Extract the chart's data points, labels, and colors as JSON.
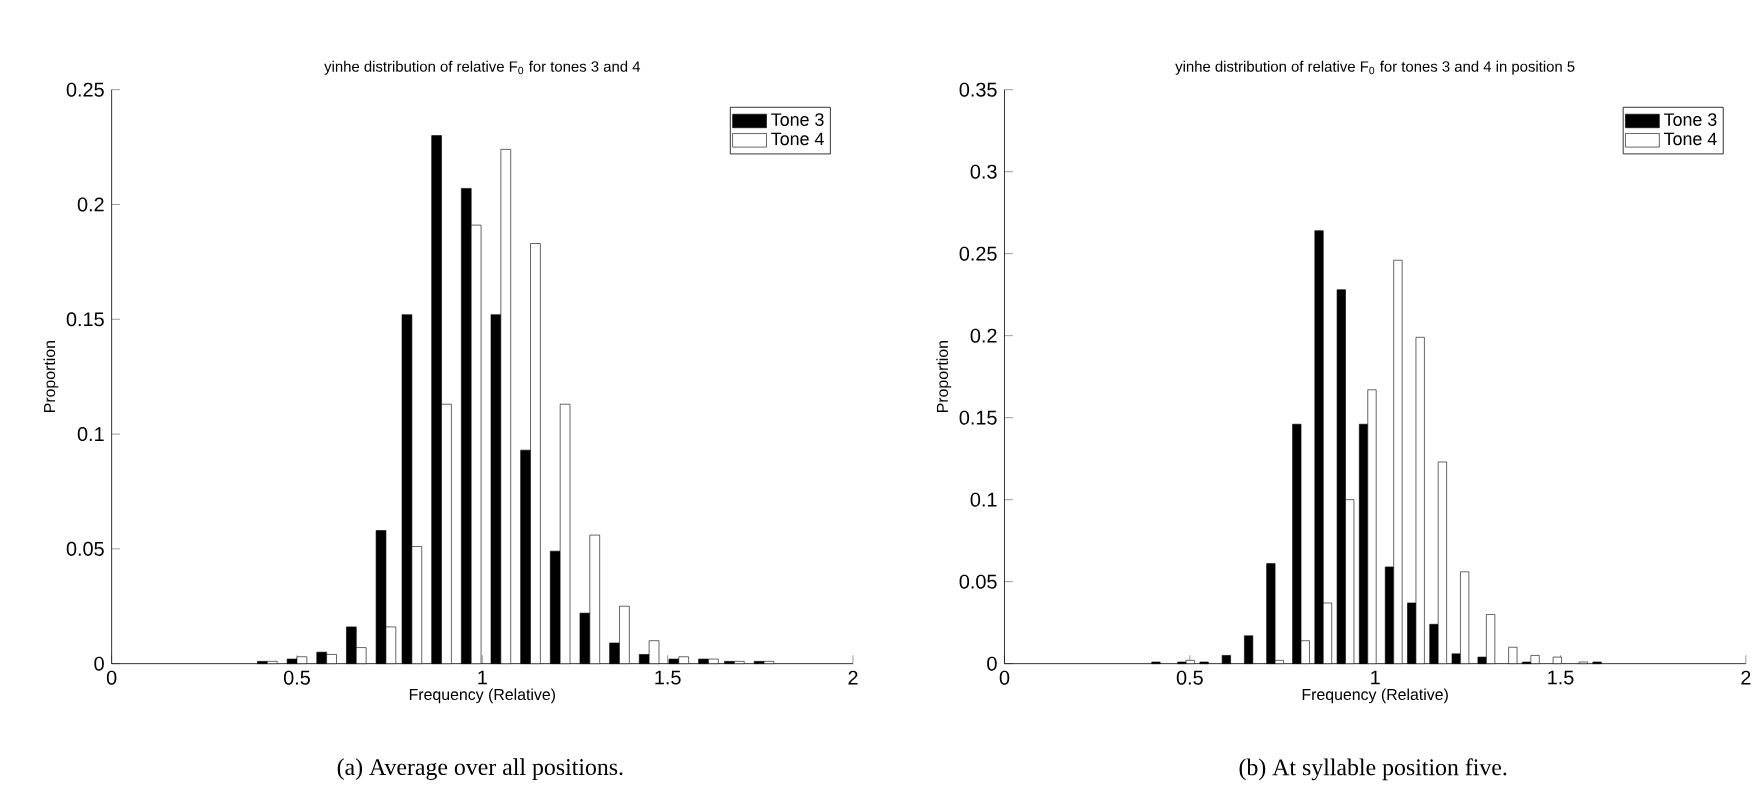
{
  "chart_data": [
    {
      "type": "bar",
      "title": "yinhe distribution of relative F$_{0}$ for tones 3 and 4",
      "xlabel": "Frequency (Relative)",
      "ylabel": "Proportion",
      "x": [
        0.42,
        0.5,
        0.58,
        0.66,
        0.74,
        0.81,
        0.89,
        0.97,
        1.05,
        1.13,
        1.21,
        1.29,
        1.37,
        1.45,
        1.53,
        1.61,
        1.68,
        1.76,
        1.84
      ],
      "series": [
        {
          "name": "Tone 3",
          "color": "#000000",
          "values": [
            0.001,
            0.002,
            0.005,
            0.016,
            0.058,
            0.152,
            0.23,
            0.207,
            0.152,
            0.093,
            0.049,
            0.022,
            0.009,
            0.004,
            0.002,
            0.002,
            0.001,
            0.001,
            0
          ]
        },
        {
          "name": "Tone 4",
          "color": "#ffffff",
          "values": [
            0.001,
            0.003,
            0.004,
            0.007,
            0.016,
            0.051,
            0.113,
            0.191,
            0.224,
            0.183,
            0.113,
            0.056,
            0.025,
            0.01,
            0.003,
            0.002,
            0.001,
            0.001,
            0
          ]
        }
      ],
      "xlim": [
        0,
        2
      ],
      "xticks": [
        0,
        0.5,
        1,
        1.5,
        2
      ],
      "ylim": [
        0,
        0.25
      ],
      "yticks": [
        0,
        0.05,
        0.1,
        0.15,
        0.2,
        0.25
      ],
      "legend": "top right",
      "grid": false,
      "annotations": [
        "(a) Average over all positions."
      ]
    },
    {
      "type": "bar",
      "title": "yinhe distribution of relative F$_{0}$ for tones 3 and 4 in position 5",
      "xlabel": "Frequency (Relative)",
      "ylabel": "Proportion",
      "x": [
        0.42,
        0.49,
        0.55,
        0.61,
        0.67,
        0.73,
        0.8,
        0.86,
        0.92,
        0.98,
        1.05,
        1.11,
        1.17,
        1.23,
        1.3,
        1.36,
        1.42,
        1.48,
        1.55,
        1.61
      ],
      "series": [
        {
          "name": "Tone 3",
          "color": "#000000",
          "values": [
            0.001,
            0.001,
            0.001,
            0.005,
            0.017,
            0.061,
            0.146,
            0.264,
            0.228,
            0.146,
            0.059,
            0.037,
            0.024,
            0.006,
            0.004,
            0,
            0.001,
            0,
            0,
            0.001
          ]
        },
        {
          "name": "Tone 4",
          "color": "#ffffff",
          "values": [
            0,
            0.002,
            0,
            0,
            0,
            0.002,
            0.014,
            0.037,
            0.1,
            0.167,
            0.246,
            0.199,
            0.123,
            0.056,
            0.03,
            0.01,
            0.005,
            0.004,
            0.001,
            0
          ]
        }
      ],
      "xlim": [
        0,
        2
      ],
      "xticks": [
        0,
        0.5,
        1,
        1.5,
        2
      ],
      "ylim": [
        0,
        0.35
      ],
      "yticks": [
        0,
        0.05,
        0.1,
        0.15,
        0.2,
        0.25,
        0.3,
        0.35
      ],
      "legend": "top right",
      "grid": false,
      "annotations": [
        "(b) At syllable position five."
      ]
    }
  ]
}
